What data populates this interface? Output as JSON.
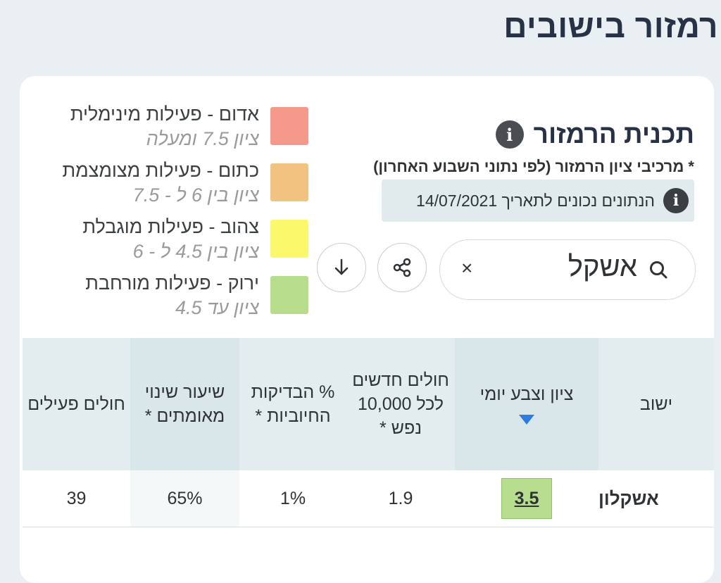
{
  "page": {
    "title": "רמזור בישובים"
  },
  "legend": {
    "items": [
      {
        "label": "אדום - פעילות מינימלית",
        "range": "ציון 7.5 ומעלה",
        "color": "#f59a8a"
      },
      {
        "label": "כתום - פעילות מצומצמת",
        "range": "ציון בין 6 ל - 7.5",
        "color": "#f2c280"
      },
      {
        "label": "צהוב - פעילות מוגבלת",
        "range": "ציון בין 4.5 ל - 6",
        "color": "#fbf86b"
      },
      {
        "label": "ירוק - פעילות מורחבת",
        "range": "ציון עד 4.5",
        "color": "#b6dc8c"
      }
    ]
  },
  "plan": {
    "title": "תכנית הרמזור",
    "components_note": "* מרכיבי ציון הרמזור (לפי נתוני השבוע האחרון)",
    "date_note": "הנתונים נכונים לתאריך 14/07/2021"
  },
  "search": {
    "value": "אשקל",
    "clear_symbol": "×"
  },
  "table": {
    "headers": {
      "city": "ישוב",
      "score": "ציון וצבע יומי",
      "new_cases": "חולים חדשים לכל 10,000 נפש *",
      "positive": "% הבדיקות החיוביות *",
      "change": "שיעור שינוי מאומתים *",
      "active": "חולים פעילים"
    },
    "rows": [
      {
        "city": "אשקלון",
        "score": "3.5",
        "new_cases": "1.9",
        "positive": "1%",
        "change": "65%",
        "active": "39"
      }
    ]
  }
}
